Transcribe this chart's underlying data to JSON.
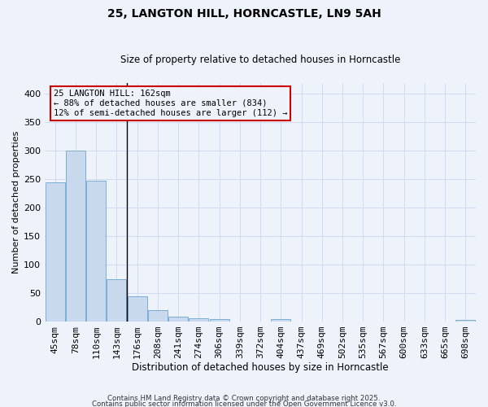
{
  "title_line1": "25, LANGTON HILL, HORNCASTLE, LN9 5AH",
  "title_line2": "Size of property relative to detached houses in Horncastle",
  "xlabel": "Distribution of detached houses by size in Horncastle",
  "ylabel": "Number of detached properties",
  "categories": [
    "45sqm",
    "78sqm",
    "110sqm",
    "143sqm",
    "176sqm",
    "208sqm",
    "241sqm",
    "274sqm",
    "306sqm",
    "339sqm",
    "372sqm",
    "404sqm",
    "437sqm",
    "469sqm",
    "502sqm",
    "535sqm",
    "567sqm",
    "600sqm",
    "633sqm",
    "665sqm",
    "698sqm"
  ],
  "values": [
    245,
    300,
    248,
    75,
    45,
    20,
    8,
    6,
    4,
    0,
    0,
    4,
    0,
    0,
    0,
    0,
    0,
    0,
    0,
    0,
    3
  ],
  "bar_color": "#c8d9ee",
  "bar_edge_color": "#7baed6",
  "background_color": "#eef2fb",
  "grid_color": "#d0daf0",
  "ylim": [
    0,
    420
  ],
  "yticks": [
    0,
    50,
    100,
    150,
    200,
    250,
    300,
    350,
    400
  ],
  "property_line_color": "#000000",
  "annotation_text_line1": "25 LANGTON HILL: 162sqm",
  "annotation_text_line2": "← 88% of detached houses are smaller (834)",
  "annotation_text_line3": "12% of semi-detached houses are larger (112) →",
  "annotation_box_color": "#cc0000",
  "footer_line1": "Contains HM Land Registry data © Crown copyright and database right 2025.",
  "footer_line2": "Contains public sector information licensed under the Open Government Licence v3.0."
}
